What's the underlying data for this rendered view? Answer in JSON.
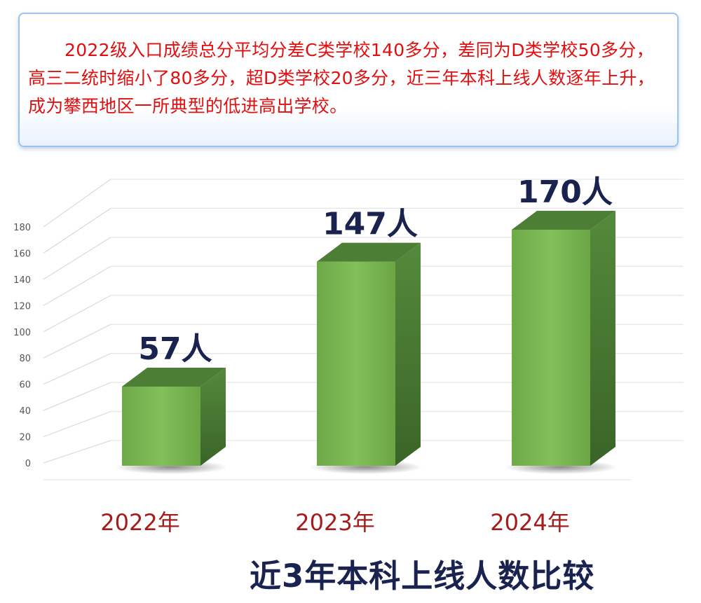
{
  "intro": {
    "paragraph": "2022级入口成绩总分平均分差C类学校140多分，差同为D类学校50多分，高三二统时缩小了80多分，超D类学校20多分，近三年本科上线人数逐年上升，成为攀西地区一所典型的低进高出学校。"
  },
  "colors": {
    "text_red": "#e01010",
    "bar_front": "#76b34f",
    "bar_top": "#4d7e36",
    "bar_side": "#3f6a2c",
    "value_label": "#1a2250",
    "category_label": "#a51c1c"
  },
  "chart_data": {
    "type": "bar",
    "title": "近3年本科上线人数比较",
    "categories": [
      "2022年",
      "2023年",
      "2024年"
    ],
    "values": [
      57,
      147,
      170
    ],
    "data_labels": [
      "57人",
      "147人",
      "170人"
    ],
    "y_ticks": [
      "0",
      "20",
      "40",
      "60",
      "80",
      "100",
      "120",
      "140",
      "160",
      "180"
    ],
    "ylim": [
      0,
      180
    ],
    "xlabel": "",
    "ylabel": "",
    "grid": true
  }
}
